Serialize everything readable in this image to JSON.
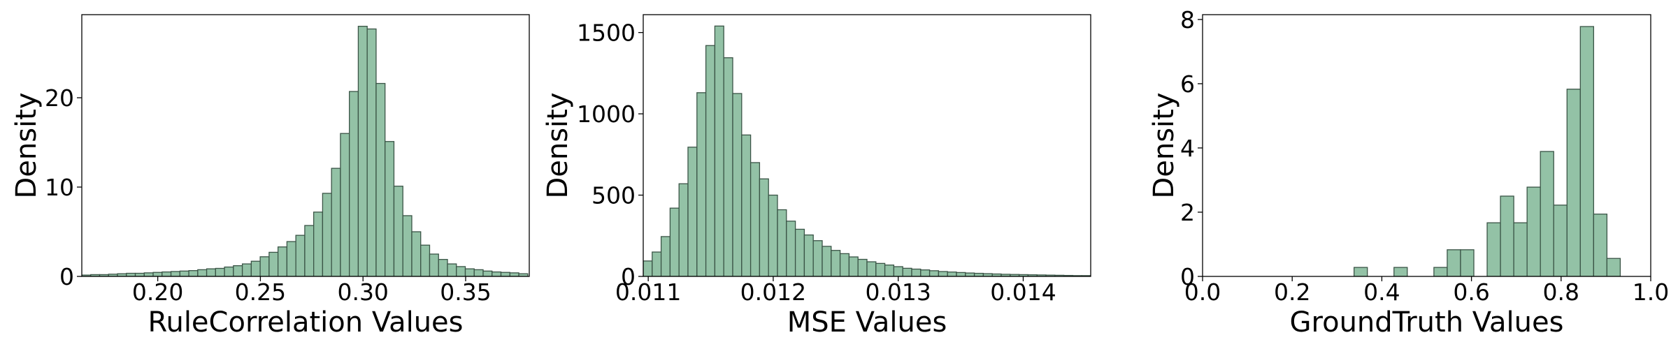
{
  "figure": {
    "bar_color": "#93c2a6",
    "bar_edge_color": "#3a5446",
    "axes_color": "#000000"
  },
  "chart_data": [
    {
      "type": "bar",
      "kind": "histogram",
      "xlabel": "RuleCorrelation Values",
      "ylabel": "Density",
      "xlim": [
        0.163,
        0.381
      ],
      "ylim": [
        0,
        29.3
      ],
      "xticks": [
        0.2,
        0.25,
        0.3,
        0.35
      ],
      "xtick_labels": [
        "0.20",
        "0.25",
        "0.30",
        "0.35"
      ],
      "yticks": [
        0,
        10,
        20
      ],
      "ytick_labels": [
        "0",
        "10",
        "20"
      ],
      "bin_start": 0.163,
      "bin_width": 0.004345,
      "values": [
        0.15,
        0.2,
        0.2,
        0.25,
        0.3,
        0.35,
        0.35,
        0.4,
        0.45,
        0.5,
        0.55,
        0.6,
        0.65,
        0.75,
        0.85,
        0.9,
        1.05,
        1.2,
        1.4,
        1.7,
        2.2,
        2.7,
        3.3,
        3.9,
        4.6,
        5.7,
        7.2,
        9.3,
        12.1,
        16.0,
        20.7,
        28.0,
        27.7,
        21.6,
        15.1,
        10.1,
        6.8,
        5.0,
        3.5,
        2.5,
        1.9,
        1.4,
        1.1,
        0.85,
        0.75,
        0.6,
        0.5,
        0.45,
        0.4,
        0.3
      ]
    },
    {
      "type": "bar",
      "kind": "histogram",
      "xlabel": "MSE Values",
      "ylabel": "Density",
      "xlim": [
        0.01096,
        0.01454
      ],
      "ylim": [
        0,
        1610
      ],
      "xticks": [
        0.011,
        0.012,
        0.013,
        0.014
      ],
      "xtick_labels": [
        "0.011",
        "0.012",
        "0.013",
        "0.014"
      ],
      "yticks": [
        0,
        500,
        1000,
        1500
      ],
      "ytick_labels": [
        "0",
        "500",
        "1000",
        "1500"
      ],
      "bin_start": 0.01096,
      "bin_width": 7.16e-05,
      "values": [
        95,
        150,
        245,
        420,
        570,
        795,
        1130,
        1420,
        1540,
        1345,
        1125,
        870,
        700,
        600,
        500,
        410,
        340,
        290,
        255,
        220,
        185,
        160,
        140,
        120,
        105,
        90,
        80,
        70,
        60,
        50,
        45,
        40,
        35,
        30,
        27,
        24,
        21,
        19,
        17,
        15,
        13,
        12,
        11,
        10,
        9,
        8,
        7,
        6,
        5,
        5
      ]
    },
    {
      "type": "bar",
      "kind": "histogram",
      "xlabel": "GroundTruth Values",
      "ylabel": "Density",
      "xlim": [
        0.0,
        1.0
      ],
      "ylim": [
        0,
        8.15
      ],
      "xticks": [
        0.0,
        0.2,
        0.4,
        0.6,
        0.8,
        1.0
      ],
      "xtick_labels": [
        "0.0",
        "0.2",
        "0.4",
        "0.6",
        "0.8",
        "1.0"
      ],
      "yticks": [
        0,
        2,
        4,
        6,
        8
      ],
      "ytick_labels": [
        "0",
        "2",
        "4",
        "6",
        "8"
      ],
      "bin_start": 0.338,
      "bin_width": 0.0297,
      "values": [
        0.28,
        0,
        0,
        0.28,
        0,
        0,
        0.28,
        0.83,
        0.83,
        0,
        1.67,
        2.5,
        1.67,
        2.78,
        3.89,
        2.22,
        5.83,
        7.78,
        1.94,
        0.56
      ]
    }
  ]
}
